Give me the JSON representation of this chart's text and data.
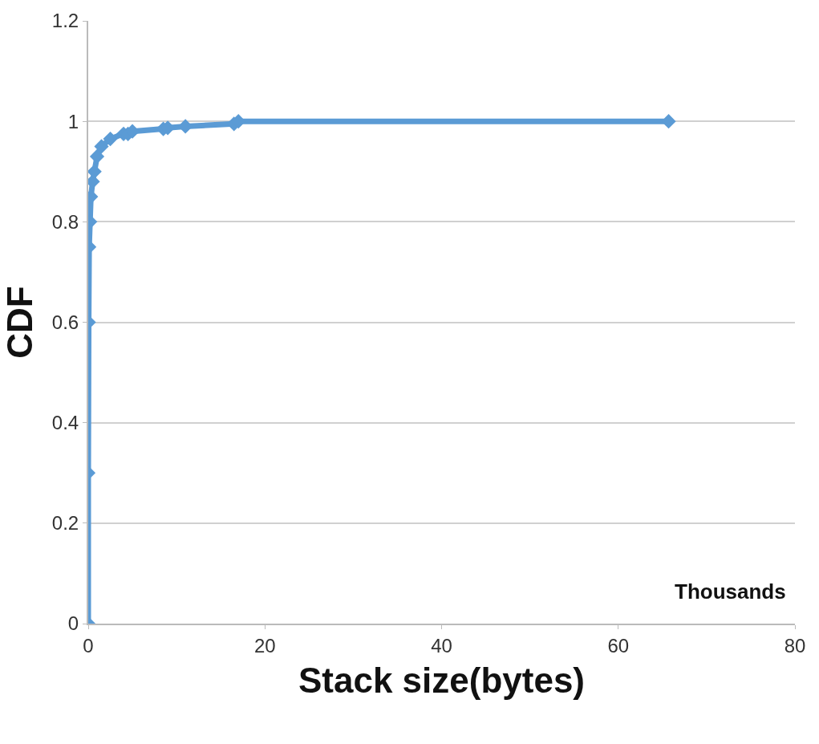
{
  "chart_data": {
    "type": "line",
    "xlabel": "Stack size(bytes)",
    "ylabel": "CDF",
    "annotations": [
      "Thousands"
    ],
    "series": [
      {
        "color": "#5b9bd5",
        "x": [
          0,
          0,
          0.05,
          0.1,
          0.2,
          0.3,
          0.5,
          0.7,
          1,
          1.5,
          2.5,
          4,
          4.5,
          5,
          8.5,
          9,
          11,
          16.5,
          17,
          65.7
        ],
        "values": [
          0,
          0.3,
          0.6,
          0.75,
          0.8,
          0.85,
          0.88,
          0.9,
          0.93,
          0.95,
          0.965,
          0.975,
          0.975,
          0.98,
          0.985,
          0.987,
          0.99,
          0.995,
          1,
          1
        ]
      }
    ],
    "xlim": [
      0,
      80
    ],
    "xticks": [
      0,
      20,
      40,
      60,
      80
    ],
    "ylim": [
      0,
      1.2
    ],
    "yticks": [
      0,
      0.2,
      0.4,
      0.6,
      0.8,
      1,
      1.2
    ],
    "grid": "y",
    "marker": "diamond",
    "line_style": "solid"
  }
}
